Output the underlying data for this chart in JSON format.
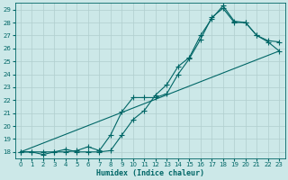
{
  "xlabel": "Humidex (Indice chaleur)",
  "bg_color": "#cce8e8",
  "line_color": "#006666",
  "grid_color": "#b0d4d4",
  "xlim": [
    -0.5,
    23.5
  ],
  "ylim": [
    17.5,
    29.5
  ],
  "xticks": [
    0,
    1,
    2,
    3,
    4,
    5,
    6,
    7,
    8,
    9,
    10,
    11,
    12,
    13,
    14,
    15,
    16,
    17,
    18,
    19,
    20,
    21,
    22,
    23
  ],
  "yticks": [
    18,
    19,
    20,
    21,
    22,
    23,
    24,
    25,
    26,
    27,
    28,
    29
  ],
  "line1_x": [
    0,
    1,
    2,
    3,
    4,
    5,
    6,
    7,
    8,
    9,
    10,
    11,
    12,
    13,
    14,
    15,
    16,
    17,
    18,
    19,
    20,
    21,
    22,
    23
  ],
  "line1_y": [
    18,
    18,
    17.8,
    18,
    18,
    18.1,
    18.4,
    18.1,
    19.3,
    21.1,
    22.2,
    22.2,
    22.2,
    22.5,
    24.0,
    25.2,
    26.7,
    28.4,
    29.1,
    28.0,
    28.0,
    27.0,
    26.6,
    26.5
  ],
  "line2_x": [
    0,
    1,
    2,
    3,
    4,
    5,
    6,
    7,
    8,
    9,
    10,
    11,
    12,
    13,
    14,
    15,
    16,
    17,
    18,
    19,
    20,
    21,
    22,
    23
  ],
  "line2_y": [
    18,
    18,
    18,
    18,
    18.2,
    18,
    18,
    18,
    18.1,
    19.3,
    20.5,
    21.2,
    22.4,
    23.2,
    24.6,
    25.3,
    27.0,
    28.3,
    29.3,
    28.1,
    28.0,
    27.0,
    26.5,
    25.8
  ],
  "line3_x": [
    0,
    23
  ],
  "line3_y": [
    18,
    25.8
  ],
  "markersize": 3,
  "linewidth": 0.8,
  "xlabel_fontsize": 6,
  "tick_fontsize": 5
}
